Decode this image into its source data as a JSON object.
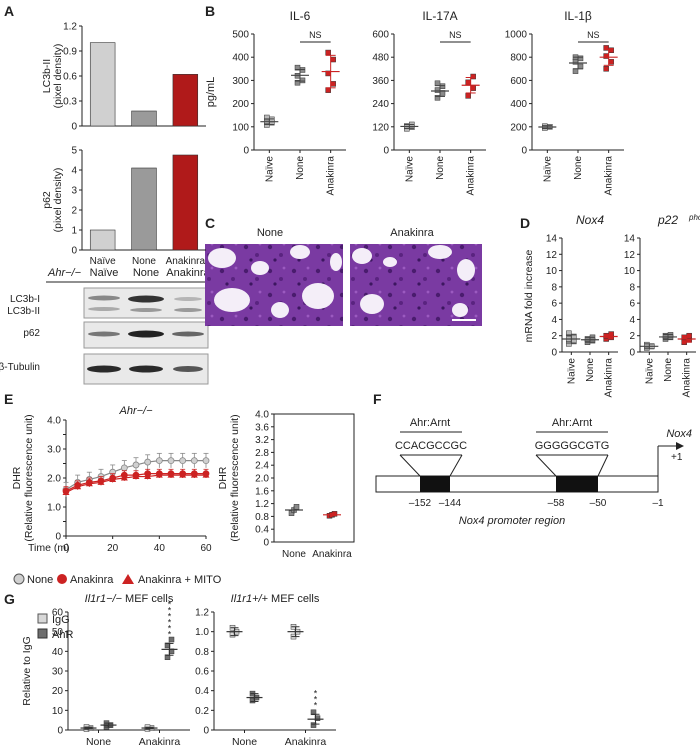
{
  "panels": {
    "A": "A",
    "B": "B",
    "C": "C",
    "D": "D",
    "E": "E",
    "F": "F",
    "G": "G"
  },
  "colors": {
    "naive": "#d0d0d0",
    "none": "#9a9a9a",
    "anakinra": "#b01a1a",
    "pt_gray": "#8a8a8a",
    "pt_red": "#cc2222",
    "pt_naive": "#b9b9b9",
    "igg": "#d8d8d8",
    "ahr": "#6e6e6e"
  },
  "blot": {
    "genotype": "Ahr−/−",
    "lanes": [
      "Naïve",
      "None",
      "Anakinra"
    ],
    "rows": [
      "LC3b-I",
      "LC3b-II",
      "p62",
      "β-Tubulin"
    ]
  },
  "panelC": {
    "titles": [
      "None",
      "Anakinra"
    ]
  },
  "panelF": {
    "motif_labels": [
      "Ahr:Arnt",
      "Ahr:Arnt"
    ],
    "sequences": [
      "CCACGCCGC",
      "GGGGGCGTG"
    ],
    "gene": "Nox4",
    "tss": "+1",
    "positions": [
      "–152",
      "–144",
      "–58",
      "–50",
      "–1"
    ],
    "region_label": "Nox4 promoter region"
  },
  "panelE_legend": {
    "items": [
      "None",
      "Anakinra",
      "Anakinra + MITO"
    ]
  },
  "panelG_legend": {
    "items": [
      "IgG",
      "AhR"
    ]
  },
  "chart_data": [
    {
      "id": "A_lc3",
      "type": "bar",
      "categories": [
        "Naïve",
        "None",
        "Anakinra"
      ],
      "values": [
        1.0,
        0.18,
        0.62
      ],
      "ylabel": "LC3b-II (pixel density)",
      "ylim": [
        0,
        1.2
      ],
      "yticks": [
        "0",
        "0.3",
        "0.6",
        "0.9",
        "1.2"
      ],
      "ytick_values": [
        0,
        0.3,
        0.6,
        0.9,
        1.2
      ]
    },
    {
      "id": "A_p62",
      "type": "bar",
      "categories": [
        "Naïve",
        "None",
        "Anakinra"
      ],
      "values": [
        1.0,
        4.1,
        4.75
      ],
      "ylabel": "p62 (pixel density)",
      "ylim": [
        0,
        5
      ],
      "yticks": [
        "0",
        "1",
        "2",
        "3",
        "4",
        "5"
      ],
      "ytick_values": [
        0,
        1,
        2,
        3,
        4,
        5
      ]
    },
    {
      "id": "B_il6",
      "type": "scatter",
      "title": "IL-6",
      "ylabel": "pg/mL",
      "categories": [
        "Naïve",
        "None",
        "Anakinra"
      ],
      "groups": [
        {
          "points": [
            108,
            118,
            125,
            132,
            140
          ],
          "mean": 122,
          "err": 12
        },
        {
          "points": [
            290,
            300,
            320,
            345,
            355
          ],
          "mean": 322,
          "err": 25
        },
        {
          "points": [
            258,
            285,
            330,
            390,
            420
          ],
          "mean": 338,
          "err": 70
        }
      ],
      "ylim": [
        0,
        500
      ],
      "yticks": [
        "0",
        "100",
        "200",
        "300",
        "400",
        "500"
      ],
      "ytick_values": [
        0,
        100,
        200,
        300,
        400,
        500
      ],
      "sig": {
        "label": "NS",
        "between": [
          1,
          2
        ]
      }
    },
    {
      "id": "B_il17",
      "type": "scatter",
      "title": "IL-17A",
      "categories": [
        "Naïve",
        "None",
        "Anakinra"
      ],
      "groups": [
        {
          "points": [
            110,
            118,
            124,
            132
          ],
          "mean": 122,
          "err": 10
        },
        {
          "points": [
            270,
            295,
            310,
            330,
            345
          ],
          "mean": 305,
          "err": 28
        },
        {
          "points": [
            280,
            320,
            350,
            380
          ],
          "mean": 335,
          "err": 40
        }
      ],
      "ylim": [
        0,
        600
      ],
      "yticks": [
        "0",
        "120",
        "240",
        "360",
        "480",
        "600"
      ],
      "ytick_values": [
        0,
        120,
        240,
        360,
        480,
        600
      ],
      "sig": {
        "label": "NS",
        "between": [
          1,
          2
        ]
      }
    },
    {
      "id": "B_il1b",
      "type": "scatter",
      "title": "IL-1β",
      "categories": [
        "Naïve",
        "None",
        "Anakinra"
      ],
      "groups": [
        {
          "points": [
            190,
            200,
            205
          ],
          "mean": 198,
          "err": 12
        },
        {
          "points": [
            680,
            720,
            760,
            790,
            800
          ],
          "mean": 750,
          "err": 50
        },
        {
          "points": [
            700,
            760,
            810,
            860,
            880
          ],
          "mean": 800,
          "err": 70
        }
      ],
      "ylim": [
        0,
        1000
      ],
      "yticks": [
        "0",
        "200",
        "400",
        "600",
        "800",
        "1000"
      ],
      "ytick_values": [
        0,
        200,
        400,
        600,
        800,
        1000
      ],
      "sig": {
        "label": "NS",
        "between": [
          1,
          2
        ]
      }
    },
    {
      "id": "D_nox4",
      "type": "scatter",
      "title": "Nox4",
      "ylabel": "mRNA fold increase",
      "categories": [
        "Naïve",
        "None",
        "Anakinra"
      ],
      "groups": [
        {
          "points": [
            1.0,
            1.3,
            1.6,
            1.9,
            2.3
          ],
          "mean": 1.6,
          "err": 0.5
        },
        {
          "points": [
            1.2,
            1.4,
            1.6,
            1.8
          ],
          "mean": 1.5,
          "err": 0.3
        },
        {
          "points": [
            1.6,
            1.8,
            2.0,
            2.2
          ],
          "mean": 1.9,
          "err": 0.3
        }
      ],
      "ylim": [
        0,
        14
      ],
      "yticks": [
        "0",
        "2",
        "4",
        "6",
        "8",
        "10",
        "12",
        "14"
      ],
      "ytick_values": [
        0,
        2,
        4,
        6,
        8,
        10,
        12,
        14
      ]
    },
    {
      "id": "D_p22",
      "type": "scatter",
      "title": "p22",
      "categories": [
        "Naïve",
        "None",
        "Anakinra"
      ],
      "groups": [
        {
          "points": [
            0.5,
            0.7,
            0.9
          ],
          "mean": 0.7,
          "err": 0.3
        },
        {
          "points": [
            1.6,
            1.8,
            2.0,
            2.1
          ],
          "mean": 1.85,
          "err": 0.3
        },
        {
          "points": [
            1.2,
            1.5,
            1.8,
            2.0
          ],
          "mean": 1.6,
          "err": 0.4
        }
      ],
      "ylim": [
        0,
        14
      ],
      "yticks": [
        "0",
        "2",
        "4",
        "6",
        "8",
        "10",
        "12",
        "14"
      ],
      "ytick_values": [
        0,
        2,
        4,
        6,
        8,
        10,
        12,
        14
      ]
    },
    {
      "id": "E_line",
      "type": "line",
      "title": "Ahr−/−",
      "ylabel": "DHR (Relative fluorescence unit)",
      "xlabel": "Time (m)",
      "x": [
        0,
        5,
        10,
        15,
        20,
        25,
        30,
        35,
        40,
        45,
        50,
        55,
        60
      ],
      "series": [
        {
          "name": "None",
          "values": [
            1.6,
            1.85,
            1.95,
            2.05,
            2.2,
            2.35,
            2.45,
            2.55,
            2.6,
            2.6,
            2.6,
            2.6,
            2.6
          ],
          "err": 0.25
        },
        {
          "name": "Anakinra",
          "values": [
            1.55,
            1.75,
            1.85,
            1.9,
            2.0,
            2.1,
            2.1,
            2.15,
            2.15,
            2.15,
            2.15,
            2.15,
            2.15
          ],
          "err": 0.15
        },
        {
          "name": "Anakinra + MITO",
          "values": [
            1.5,
            1.7,
            1.8,
            1.85,
            1.95,
            2.0,
            2.05,
            2.05,
            2.1,
            2.1,
            2.1,
            2.1,
            2.1
          ],
          "err": 0.1
        }
      ],
      "xlim": [
        0,
        60
      ],
      "xticks": [
        "0",
        "20",
        "40",
        "60"
      ],
      "xtick_values": [
        0,
        20,
        40,
        60
      ],
      "ylim": [
        0,
        4.0
      ],
      "yticks": [
        "0",
        "0.5",
        "1.0",
        "1.5",
        "2.0",
        "2.5",
        "3.0",
        "3.5",
        "4.0"
      ],
      "ytick_values": [
        0,
        0.5,
        1.0,
        1.5,
        2.0,
        2.5,
        3.0,
        3.5,
        4.0
      ]
    },
    {
      "id": "E_dot",
      "type": "scatter",
      "ylabel": "DHR (Relative fluorescence unit)",
      "categories": [
        "None",
        "Anakinra"
      ],
      "groups": [
        {
          "points": [
            0.9,
            1.0,
            1.1
          ],
          "mean": 1.0,
          "err": 0.12
        },
        {
          "points": [
            0.82,
            0.85,
            0.88
          ],
          "mean": 0.85,
          "err": 0.06
        }
      ],
      "ylim": [
        0,
        4.0
      ],
      "yticks": [
        "0",
        "0.4",
        "0.8",
        "1.2",
        "1.6",
        "2.0",
        "2.4",
        "2.8",
        "3.2",
        "3.6",
        "4.0"
      ],
      "ytick_values": [
        0,
        0.4,
        0.8,
        1.2,
        1.6,
        2.0,
        2.4,
        2.8,
        3.2,
        3.6,
        4.0
      ]
    },
    {
      "id": "G_ko",
      "type": "scatter",
      "title": "Il1r1−/− MEF cells",
      "ylabel": "Relative to IgG",
      "categories": [
        "None",
        "Anakinra"
      ],
      "series": [
        {
          "name": "IgG",
          "groups": [
            {
              "points": [
                0.5,
                1.0,
                1.5
              ],
              "mean": 1.0,
              "err": 0.5
            },
            {
              "points": [
                0.6,
                1.0,
                1.4
              ],
              "mean": 1.0,
              "err": 0.4
            }
          ]
        },
        {
          "name": "AhR",
          "groups": [
            {
              "points": [
                1.5,
                2.5,
                3.5
              ],
              "mean": 2.5,
              "err": 1.0
            },
            {
              "points": [
                37,
                40,
                43,
                46
              ],
              "mean": 41,
              "err": 3
            }
          ]
        }
      ],
      "ylim": [
        0,
        60
      ],
      "yticks": [
        "0",
        "10",
        "20",
        "30",
        "40",
        "50",
        "60"
      ],
      "ytick_values": [
        0,
        10,
        20,
        30,
        40,
        50,
        60
      ],
      "stars": "******"
    },
    {
      "id": "G_wt",
      "type": "scatter",
      "title": "Il1r1+/+ MEF cells",
      "categories": [
        "None",
        "Anakinra"
      ],
      "series": [
        {
          "name": "IgG",
          "groups": [
            {
              "points": [
                0.97,
                1.0,
                1.04
              ],
              "mean": 1.0,
              "err": 0.04
            },
            {
              "points": [
                0.95,
                1.0,
                1.05
              ],
              "mean": 1.0,
              "err": 0.05
            }
          ]
        },
        {
          "name": "AhR",
          "groups": [
            {
              "points": [
                0.3,
                0.33,
                0.37
              ],
              "mean": 0.33,
              "err": 0.04
            },
            {
              "points": [
                0.05,
                0.12,
                0.18
              ],
              "mean": 0.11,
              "err": 0.05
            }
          ]
        }
      ],
      "ylim": [
        0,
        1.2
      ],
      "yticks": [
        "0",
        "0.2",
        "0.4",
        "0.6",
        "0.8",
        "1.0",
        "1.2"
      ],
      "ytick_values": [
        0,
        0.2,
        0.4,
        0.6,
        0.8,
        1.0,
        1.2
      ],
      "stars": "***"
    }
  ]
}
